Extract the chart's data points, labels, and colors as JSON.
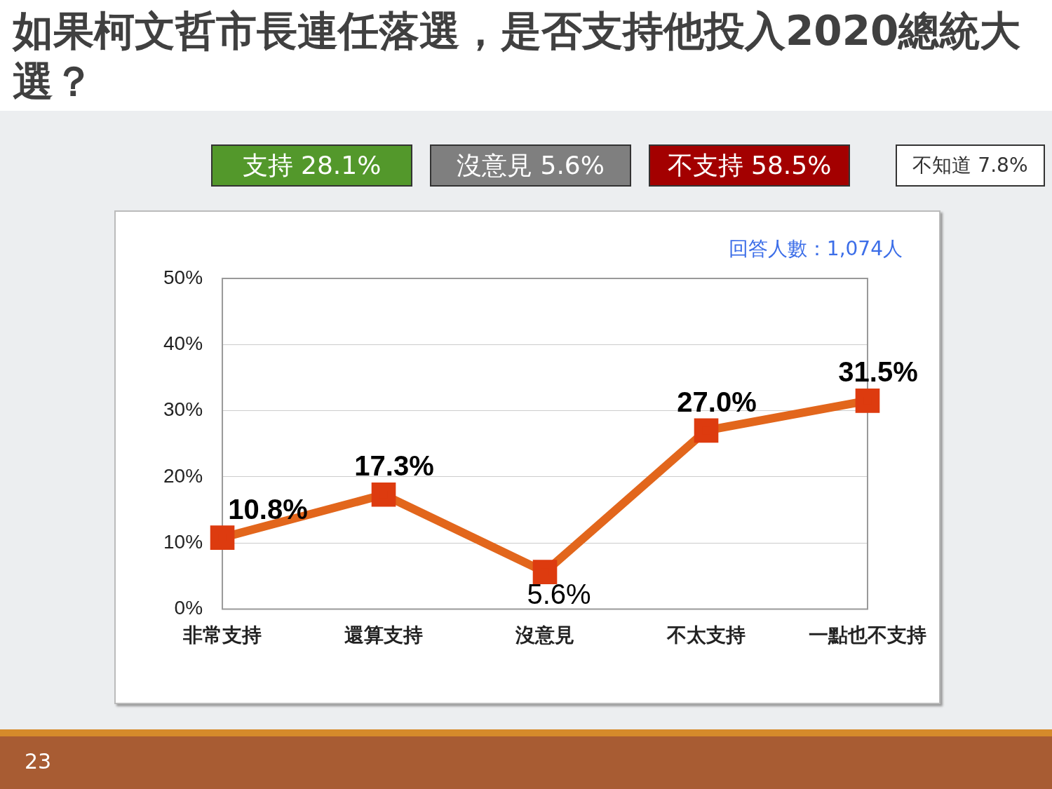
{
  "chart_data": {
    "type": "line",
    "title": "如果柯文哲市長連任落選，是否支持他投入2020總統大選？",
    "categories": [
      "非常支持",
      "還算支持",
      "沒意見",
      "不太支持",
      "一點也不支持"
    ],
    "series": [
      {
        "color": "#e2661c",
        "values": [
          10.8,
          17.3,
          5.6,
          27.0,
          31.5
        ],
        "value_labels": [
          "10.8%",
          "17.3%",
          "5.6%",
          "27.0%",
          "31.5%"
        ]
      }
    ],
    "ylim": [
      0,
      50
    ],
    "yticks": [
      {
        "value": 0,
        "label": "0%"
      },
      {
        "value": 10,
        "label": "10%"
      },
      {
        "value": 20,
        "label": "20%"
      },
      {
        "value": 30,
        "label": "30%"
      },
      {
        "value": 40,
        "label": "40%"
      },
      {
        "value": 50,
        "label": "50%"
      }
    ],
    "grid": "y",
    "legend": false,
    "marker": "square",
    "line_style": "solid",
    "annotations": [
      "支持 28.1%",
      "沒意見 5.6%",
      "不支持 58.5%",
      "不知道 7.8%",
      "回答人數：1,074人",
      "23"
    ]
  }
}
